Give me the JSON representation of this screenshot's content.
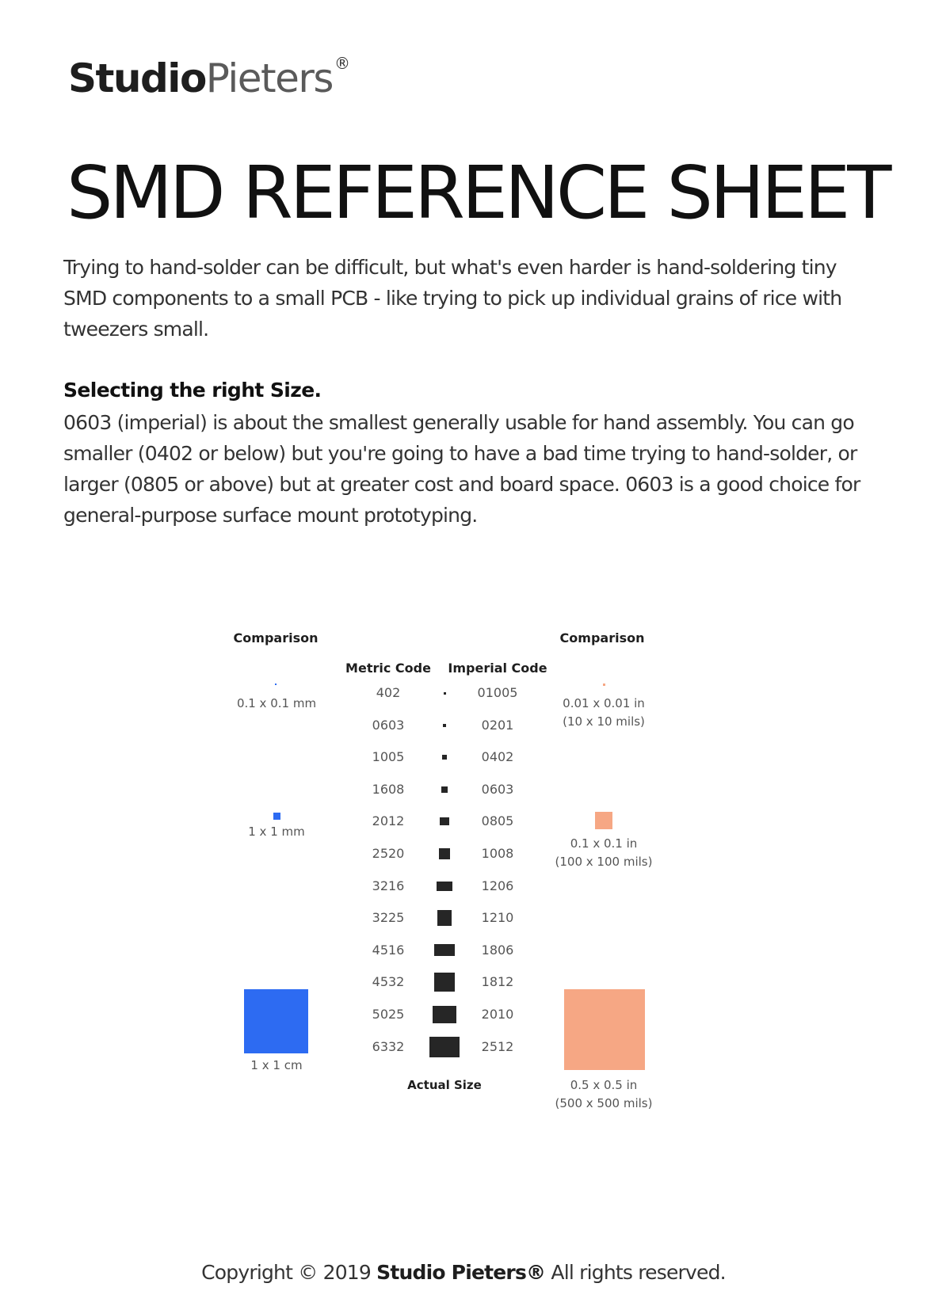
{
  "logo": {
    "bold": "Studio",
    "light": "Pieters",
    "reg": "®"
  },
  "title": "SMD REFERENCE SHEET",
  "intro": "Trying to hand-solder can be difficult, but what's even harder is hand-soldering tiny SMD components to a small PCB - like trying to pick up individual grains of rice with tweezers small.",
  "section": {
    "heading": "Selecting the right Size.",
    "body": "0603 (imperial) is about the smallest generally usable for hand assembly. You can go smaller (0402 or below) but you're going to have a bad time trying to hand-solder, or larger (0805 or above) but at greater cost and board space. 0603 is a good choice for general-purpose surface mount prototyping."
  },
  "table": {
    "left_header": "Comparison",
    "right_header": "Comparison",
    "metric_header": "Metric Code",
    "imperial_header": "Imperial Code",
    "actual_size_label": "Actual Size",
    "rows": [
      {
        "metric": "402",
        "imperial": "01005"
      },
      {
        "metric": "0603",
        "imperial": "0201"
      },
      {
        "metric": "1005",
        "imperial": "0402"
      },
      {
        "metric": "1608",
        "imperial": "0603"
      },
      {
        "metric": "2012",
        "imperial": "0805"
      },
      {
        "metric": "2520",
        "imperial": "1008"
      },
      {
        "metric": "3216",
        "imperial": "1206"
      },
      {
        "metric": "3225",
        "imperial": "1210"
      },
      {
        "metric": "4516",
        "imperial": "1806"
      },
      {
        "metric": "4532",
        "imperial": "1812"
      },
      {
        "metric": "5025",
        "imperial": "2010"
      },
      {
        "metric": "6332",
        "imperial": "2512"
      }
    ],
    "metric_comparisons": [
      {
        "label": "0.1 x 0.1 mm"
      },
      {
        "label": "1 x 1 mm"
      },
      {
        "label": "1 x 1 cm"
      }
    ],
    "imperial_comparisons": [
      {
        "label": "0.01 x 0.01 in",
        "sub": "(10 x 10 mils)"
      },
      {
        "label": "0.1 x 0.1 in",
        "sub": "(100 x 100 mils)"
      },
      {
        "label": "0.5 x 0.5 in",
        "sub": "(500 x 500 mils)"
      }
    ]
  },
  "footer": {
    "prefix": "Copyright © 2019",
    "brand": "Studio Pieters®",
    "suffix": "All rights reserved."
  },
  "colors": {
    "metric_square": "#2d6bf2",
    "imperial_square": "#f6a784",
    "component": "#262626"
  }
}
